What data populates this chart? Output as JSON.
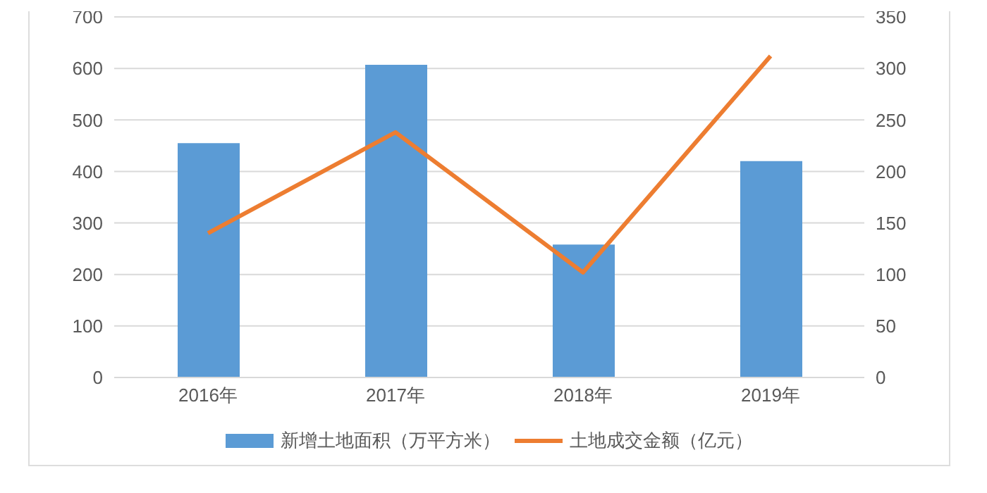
{
  "chart_data": {
    "type": "bar",
    "categories": [
      "2016年",
      "2017年",
      "2018年",
      "2019年"
    ],
    "series": [
      {
        "name": "新增土地面积（万平方米）",
        "color": "#5b9bd5",
        "values": [
          455,
          607,
          258,
          420
        ]
      },
      {
        "name": "土地成交金额（亿元）",
        "type": "line",
        "axis": "y2",
        "color": "#ed7d31",
        "values": [
          140,
          238,
          102,
          312
        ]
      }
    ],
    "ylim": [
      0,
      700
    ],
    "yticks": [
      0,
      100,
      200,
      300,
      400,
      500,
      600,
      700
    ],
    "y2lim": [
      0,
      350
    ],
    "y2ticks": [
      0,
      50,
      100,
      150,
      200,
      250,
      300,
      350
    ],
    "grid": "y",
    "legend": "bottom",
    "marker": "none"
  }
}
